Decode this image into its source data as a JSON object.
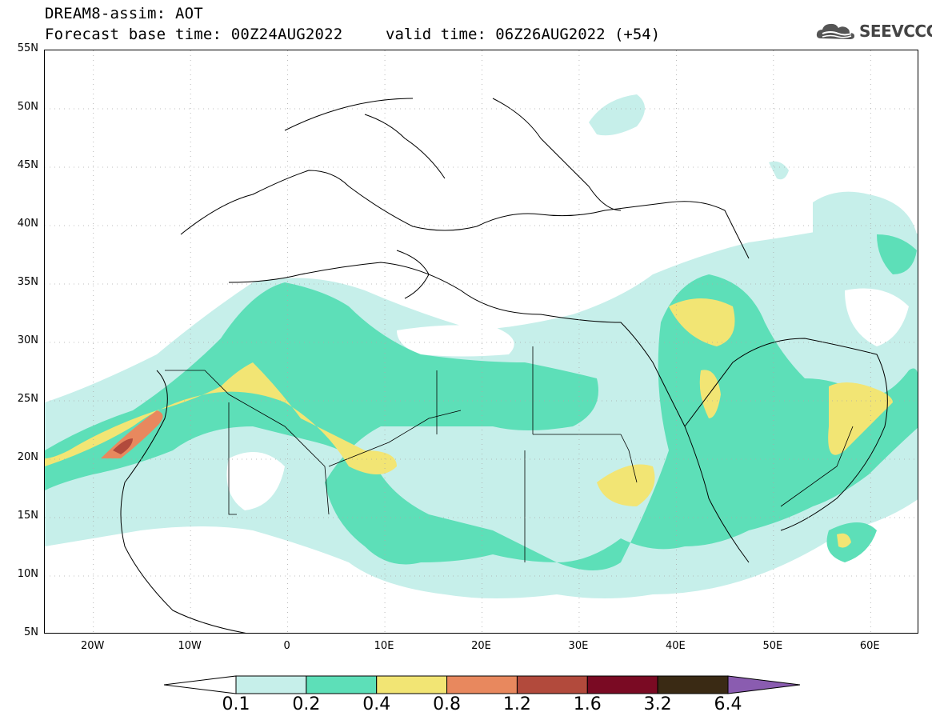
{
  "header": {
    "title_line1": "DREAM8-assim: AOT",
    "title_line2": "Forecast base time: 00Z24AUG2022",
    "valid_time": "valid time: 06Z26AUG2022 (+54)",
    "logo_text": "SEEVCCC",
    "logo_icon": "cloud-logo-icon"
  },
  "map": {
    "lat_labels": [
      "55N",
      "50N",
      "45N",
      "40N",
      "35N",
      "30N",
      "25N",
      "20N",
      "15N",
      "10N",
      "5N"
    ],
    "lon_labels": [
      "20W",
      "10W",
      "0",
      "10E",
      "20E",
      "30E",
      "40E",
      "50E",
      "60E"
    ],
    "lon_range": [
      -25,
      65
    ],
    "lat_range": [
      5,
      55
    ],
    "grid": "dotted"
  },
  "colorbar": {
    "labels": [
      "0.1",
      "0.2",
      "0.4",
      "0.8",
      "1.2",
      "1.6",
      "3.2",
      "6.4"
    ],
    "colors": [
      "#c6efea",
      "#5ddfb8",
      "#f2e574",
      "#e8885e",
      "#b24a3c",
      "#7a0a23",
      "#3a2a14",
      "#8a5cb0"
    ]
  }
}
